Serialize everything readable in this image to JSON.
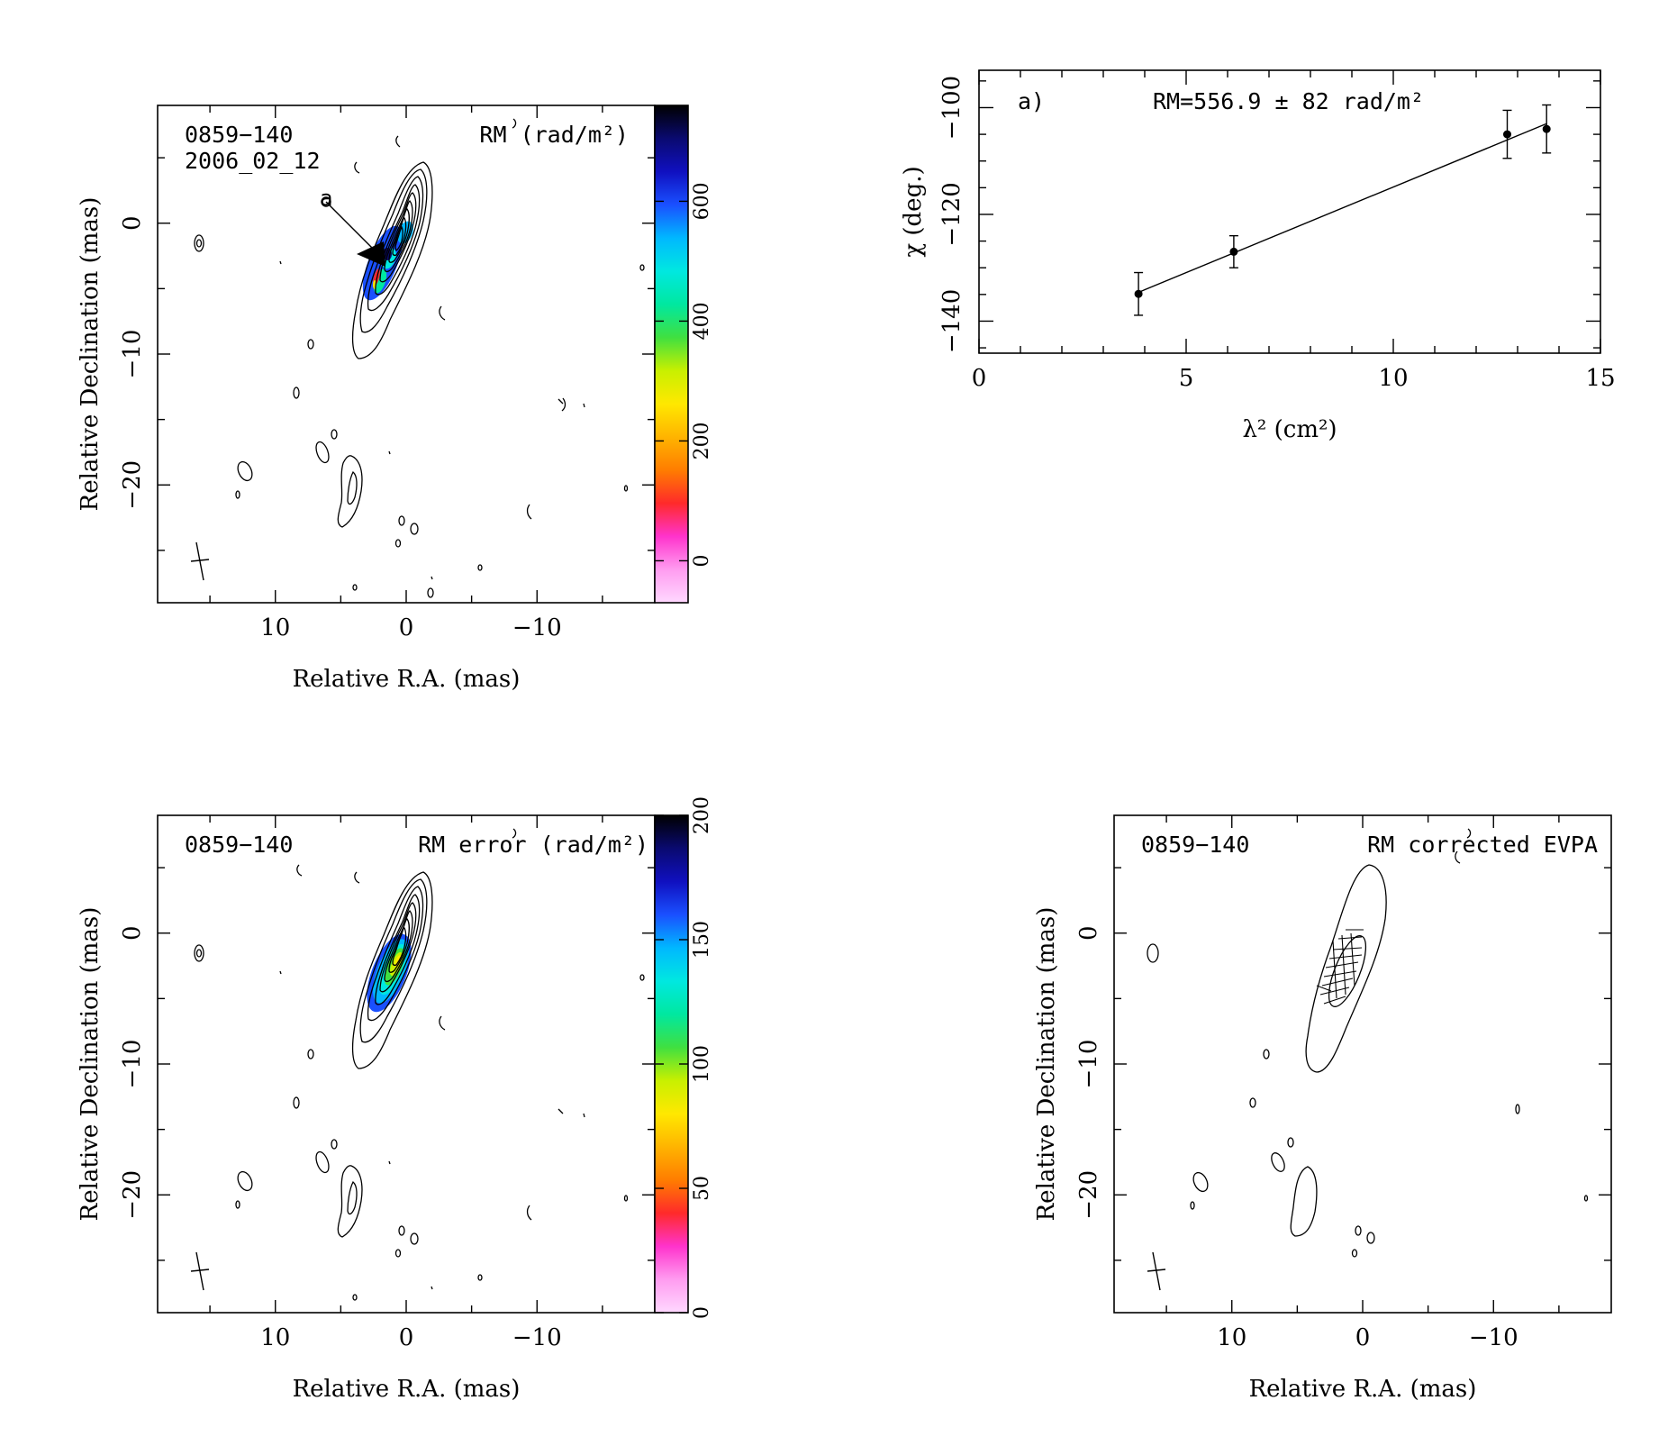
{
  "colors": {
    "ink": "#000000",
    "background": "#ffffff"
  },
  "source": "0859-140",
  "epoch": "2006_02_12",
  "colormap": [
    "#ffd8ff",
    "#ff9cf0",
    "#ff33cc",
    "#ff2a2a",
    "#ff7d00",
    "#ffb400",
    "#ffe800",
    "#c8f000",
    "#40e040",
    "#00e8a0",
    "#00e8e0",
    "#00b8ff",
    "#1a50ff",
    "#1010c0",
    "#0a0a70",
    "#000000"
  ],
  "chart_data": [
    {
      "id": "rm_map",
      "type": "heatmap",
      "title_left": "0859−140",
      "title_left_2": "2006_02_12",
      "title_right": "RM (rad/m²)",
      "annotation": "a",
      "xlabel": "Relative R.A. (mas)",
      "ylabel": "Relative Declination (mas)",
      "xlim": [
        19,
        -19
      ],
      "ylim": [
        -29,
        9
      ],
      "xticks": [
        {
          "v": 10,
          "t": "10"
        },
        {
          "v": 0,
          "t": "0"
        },
        {
          "v": -10,
          "t": "−10"
        }
      ],
      "yticks": [
        {
          "v": 0,
          "t": "0"
        },
        {
          "v": -10,
          "t": "−10"
        },
        {
          "v": -20,
          "t": "−20"
        }
      ],
      "colorbar": {
        "range": [
          -70,
          760
        ],
        "ticks": [
          {
            "v": 0,
            "t": "0"
          },
          {
            "v": 200,
            "t": "200"
          },
          {
            "v": 400,
            "t": "400"
          },
          {
            "v": 600,
            "t": "600"
          }
        ]
      }
    },
    {
      "id": "rm_fit",
      "type": "scatter",
      "panel_label": "a)",
      "annotation": "RM=556.9 ± 82 rad/m²",
      "xlabel": "λ² (cm²)",
      "ylabel": "χ (deg.)",
      "xlim": [
        0,
        15
      ],
      "ylim": [
        -146,
        -93
      ],
      "xticks": [
        {
          "v": 0,
          "t": "0"
        },
        {
          "v": 5,
          "t": "5"
        },
        {
          "v": 10,
          "t": "10"
        },
        {
          "v": 15,
          "t": "15"
        }
      ],
      "yticks": [
        {
          "v": -100,
          "t": "−100"
        },
        {
          "v": -120,
          "t": "−120"
        },
        {
          "v": -140,
          "t": "−140"
        }
      ],
      "x": [
        3.85,
        6.15,
        12.75,
        13.7
      ],
      "y": [
        -134.9,
        -127.0,
        -105.0,
        -104.0
      ],
      "yerr": [
        4.0,
        3.0,
        4.5,
        4.5
      ],
      "fit": {
        "x": [
          3.85,
          13.7
        ],
        "y": [
          -134.6,
          -103.0
        ]
      }
    },
    {
      "id": "rm_error_map",
      "type": "heatmap",
      "title_left": "0859−140",
      "title_right": "RM error (rad/m²)",
      "xlabel": "Relative R.A. (mas)",
      "ylabel": "Relative Declination (mas)",
      "xlim": [
        19,
        -19
      ],
      "ylim": [
        -29,
        9
      ],
      "xticks": [
        {
          "v": 10,
          "t": "10"
        },
        {
          "v": 0,
          "t": "0"
        },
        {
          "v": -10,
          "t": "−10"
        }
      ],
      "yticks": [
        {
          "v": 0,
          "t": "0"
        },
        {
          "v": -10,
          "t": "−10"
        },
        {
          "v": -20,
          "t": "−20"
        }
      ],
      "colorbar": {
        "range": [
          0,
          200
        ],
        "ticks": [
          {
            "v": 0,
            "t": "0"
          },
          {
            "v": 50,
            "t": "50"
          },
          {
            "v": 100,
            "t": "100"
          },
          {
            "v": 150,
            "t": "150"
          },
          {
            "v": 200,
            "t": "200"
          }
        ]
      }
    },
    {
      "id": "evpa_map",
      "type": "heatmap",
      "title_left": "0859−140",
      "title_right": "RM corrected EVPA",
      "xlabel": "Relative R.A. (mas)",
      "ylabel": "Relative Declination (mas)",
      "xlim": [
        19,
        -19
      ],
      "ylim": [
        -29,
        9
      ],
      "xticks": [
        {
          "v": 10,
          "t": "10"
        },
        {
          "v": 0,
          "t": "0"
        },
        {
          "v": -10,
          "t": "−10"
        }
      ],
      "yticks": [
        {
          "v": 0,
          "t": "0"
        },
        {
          "v": -10,
          "t": "−10"
        },
        {
          "v": -20,
          "t": "−20"
        }
      ]
    }
  ]
}
